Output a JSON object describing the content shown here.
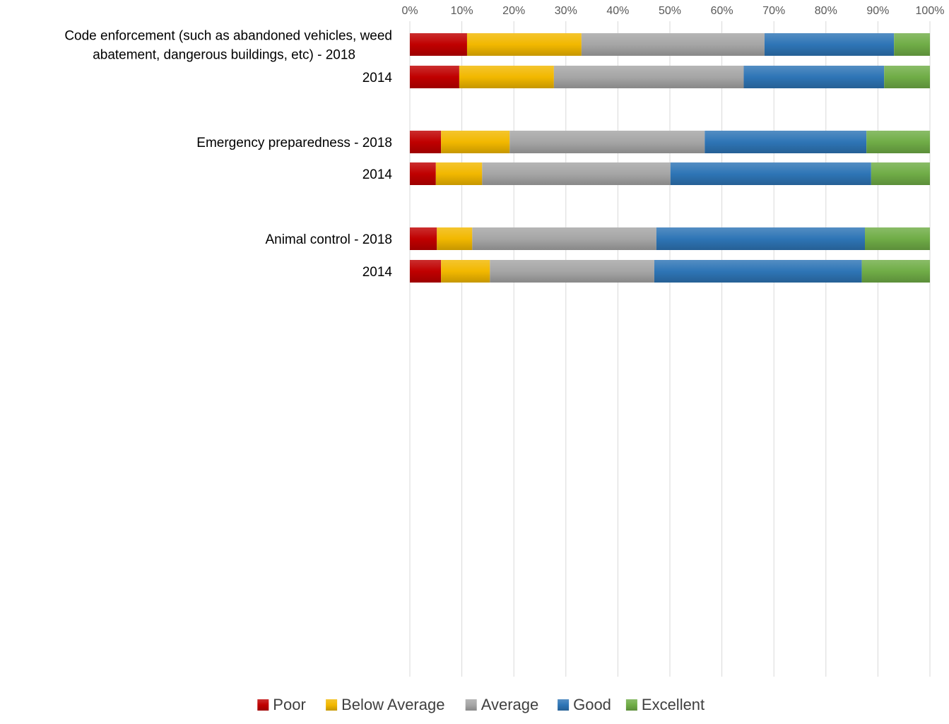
{
  "chart_data": {
    "type": "bar",
    "orientation": "horizontal",
    "stacked": "percent",
    "categories": [
      "Code enforcement (such as abandoned vehicles, weed abatement, dangerous buildings, etc) - 2018",
      "2014",
      "Emergency preparedness - 2018",
      "2014",
      "Animal control - 2018",
      "2014"
    ],
    "category_groups": [
      {
        "label_lines": [
          "Code enforcement (such as abandoned vehicles, weed",
          "abatement, dangerous buildings, etc) - 2018"
        ],
        "rows": [
          0,
          1
        ]
      },
      {
        "label_lines": [
          "Emergency preparedness - 2018"
        ],
        "rows": [
          2,
          3
        ]
      },
      {
        "label_lines": [
          "Animal control - 2018"
        ],
        "rows": [
          4,
          5
        ]
      }
    ],
    "series": [
      {
        "name": "Poor",
        "color": "#c00000",
        "values": [
          11,
          9.5,
          6,
          5,
          5.2,
          6
        ]
      },
      {
        "name": "Below Average",
        "color": "#f2b800",
        "values": [
          22,
          18.2,
          13.2,
          8.9,
          6.8,
          9.4
        ]
      },
      {
        "name": "Average",
        "color": "#a6a6a6",
        "values": [
          35.2,
          36.5,
          37.5,
          36.2,
          35.4,
          31.6
        ]
      },
      {
        "name": "Good",
        "color": "#2e75b6",
        "values": [
          24.9,
          27,
          31.1,
          38.6,
          40.1,
          39.9
        ]
      },
      {
        "name": "Excellent",
        "color": "#70ad47",
        "values": [
          6.9,
          8.8,
          12.2,
          11.3,
          12.5,
          13.1
        ]
      }
    ],
    "xlim": [
      0,
      100
    ],
    "xticks": [
      "0%",
      "10%",
      "20%",
      "30%",
      "40%",
      "50%",
      "60%",
      "70%",
      "80%",
      "90%",
      "100%"
    ],
    "xaxis_position": "top",
    "grid": true,
    "legend_position": "bottom",
    "title": "",
    "xlabel": "",
    "ylabel": ""
  }
}
